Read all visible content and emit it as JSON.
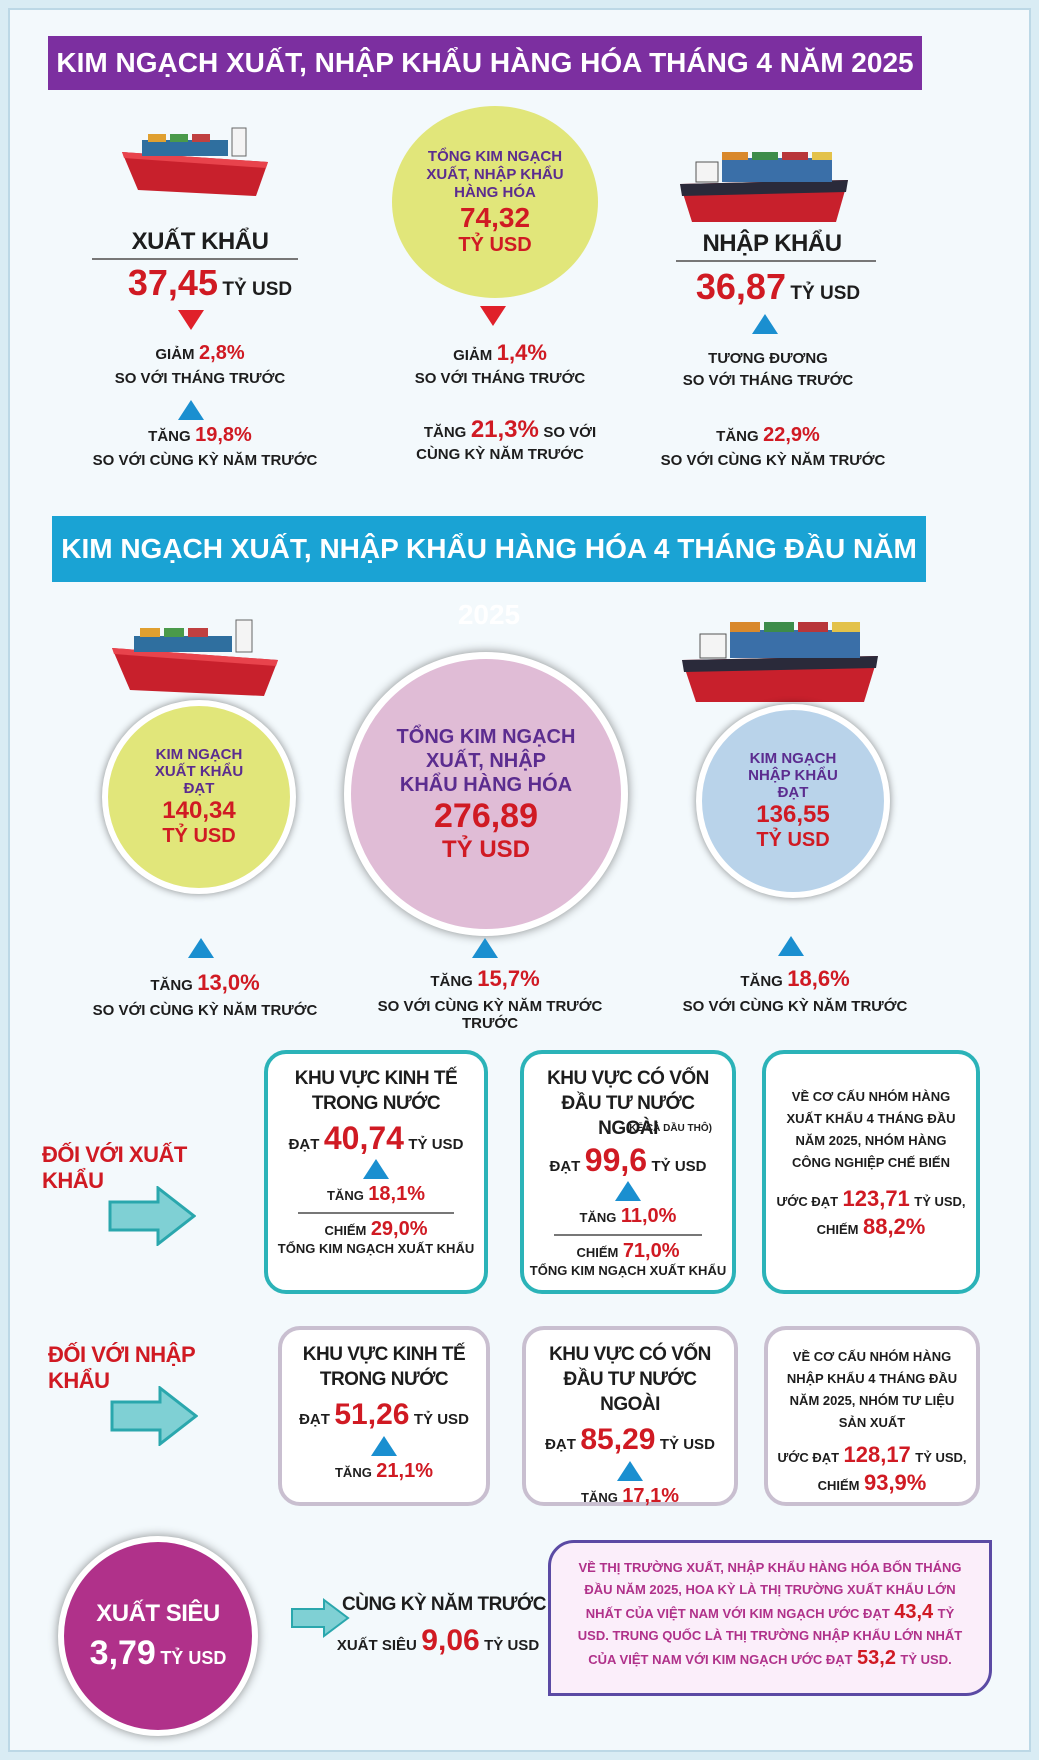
{
  "section1": {
    "title": "KIM NGẠCH XUẤT, NHẬP KHẨU HÀNG HÓA THÁNG 4 NĂM 2025",
    "export": {
      "label": "XUẤT KHẨU",
      "value": "37,45",
      "unit": "TỶ USD",
      "change1_prefix": "GIẢM",
      "change1_value": "2,8%",
      "change1_note": "SO VỚI THÁNG TRƯỚC",
      "change2_prefix": "TĂNG",
      "change2_value": "19,8%",
      "change2_note": "SO VỚI CÙNG KỲ NĂM TRƯỚC"
    },
    "total": {
      "label": "TỔNG KIM NGẠCH XUẤT, NHẬP KHẨU HÀNG HÓA",
      "value": "74,32",
      "unit": "TỶ USD",
      "change1_prefix": "GIẢM",
      "change1_value": "1,4%",
      "change1_note": "SO VỚI THÁNG TRƯỚC",
      "change2_prefix": "TĂNG",
      "change2_value": "21,3%",
      "change2_note_a": "SO VỚI",
      "change2_note_b": "CÙNG KỲ NĂM TRƯỚC"
    },
    "import": {
      "label": "NHẬP KHẨU",
      "value": "36,87",
      "unit": "TỶ USD",
      "change1_prefix": "TƯƠNG ĐƯƠNG",
      "change1_note": "SO VỚI THÁNG TRƯỚC",
      "change2_prefix": "TĂNG",
      "change2_value": "22,9%",
      "change2_note": "SO VỚI CÙNG KỲ NĂM TRƯỚC"
    }
  },
  "section2": {
    "title": "KIM NGẠCH XUẤT, NHẬP KHẨU HÀNG HÓA 4 THÁNG ĐẦU NĂM 2025",
    "export": {
      "label": "KIM NGẠCH XUẤT KHẨU ĐẠT",
      "value": "140,34",
      "unit": "TỶ USD",
      "change_prefix": "TĂNG",
      "change_value": "13,0%",
      "change_note": "SO VỚI CÙNG KỲ NĂM TRƯỚC"
    },
    "total": {
      "label": "TỔNG KIM NGẠCH XUẤT, NHẬP KHẨU HÀNG HÓA",
      "value": "276,89",
      "unit": "TỶ USD",
      "change_prefix": "TĂNG",
      "change_value": "15,7%",
      "change_note": "SO VỚI CÙNG KỲ NĂM TRƯỚC TRƯỚC"
    },
    "import": {
      "label": "KIM NGẠCH NHẬP KHẨU ĐẠT",
      "value": "136,55",
      "unit": "TỶ USD",
      "change_prefix": "TĂNG",
      "change_value": "18,6%",
      "change_note": "SO VỚI CÙNG KỲ NĂM TRƯỚC"
    }
  },
  "export_section": {
    "label": "ĐỐI VỚI XUẤT KHẨU",
    "domestic": {
      "title": "KHU VỰC KINH TẾ TRONG NƯỚC",
      "reach_prefix": "ĐẠT",
      "value": "40,74",
      "unit": "TỶ USD",
      "change_prefix": "TĂNG",
      "change_value": "18,1%",
      "share_prefix": "CHIẾM",
      "share_value": "29,0%",
      "share_note": "TỔNG KIM NGẠCH XUẤT KHẨU"
    },
    "fdi": {
      "title": "KHU VỰC CÓ VỐN ĐẦU TƯ NƯỚC NGOÀI",
      "title_note": "(KỂ CẢ DẦU THÔ)",
      "reach_prefix": "ĐẠT",
      "value": "99,6",
      "unit": "TỶ USD",
      "change_prefix": "TĂNG",
      "change_value": "11,0%",
      "share_prefix": "CHIẾM",
      "share_value": "71,0%",
      "share_note": "TỔNG KIM NGẠCH XUẤT KHẨU"
    },
    "structure": {
      "text": "VỀ CƠ CẤU NHÓM HÀNG XUẤT KHẨU 4 THÁNG ĐẦU NĂM 2025, NHÓM HÀNG CÔNG NGHIỆP CHẾ BIẾN",
      "est_prefix": "ƯỚC ĐẠT",
      "est_value": "123,71",
      "est_unit": "TỶ USD,",
      "share_prefix": "CHIẾM",
      "share_value": "88,2%"
    }
  },
  "import_section": {
    "label": "ĐỐI VỚI NHẬP KHẨU",
    "domestic": {
      "title": "KHU VỰC KINH TẾ TRONG NƯỚC",
      "reach_prefix": "ĐẠT",
      "value": "51,26",
      "unit": "TỶ USD",
      "change_prefix": "TĂNG",
      "change_value": "21,1%"
    },
    "fdi": {
      "title": "KHU VỰC CÓ VỐN ĐẦU TƯ NƯỚC NGOÀI",
      "reach_prefix": "ĐẠT",
      "value": "85,29",
      "unit": "TỶ USD",
      "change_prefix": "TĂNG",
      "change_value": "17,1%"
    },
    "structure": {
      "text": "VỀ CƠ CẤU NHÓM HÀNG NHẬP KHẨU 4 THÁNG ĐẦU NĂM 2025, NHÓM TƯ LIỆU SẢN XUẤT",
      "est_prefix": "ƯỚC ĐẠT",
      "est_value": "128,17",
      "est_unit": "TỶ USD,",
      "share_prefix": "CHIẾM",
      "share_value": "93,9%"
    }
  },
  "surplus": {
    "label": "XUẤT SIÊU",
    "value": "3,79",
    "unit": "TỶ USD",
    "prev_title": "CÙNG KỲ NĂM TRƯỚC",
    "prev_prefix": "XUẤT SIÊU",
    "prev_value": "9,06",
    "prev_unit": "TỶ USD"
  },
  "markets": {
    "text1": "VỀ THỊ TRƯỜNG XUẤT, NHẬP KHẨU HÀNG HÓA BỐN THÁNG ĐẦU NĂM 2025, HOA KỲ LÀ THỊ TRƯỜNG XUẤT KHẨU LỚN NHẤT CỦA VIỆT NAM VỚI KIM NGẠCH ƯỚC ĐẠT",
    "value1": "43,4",
    "text2": "TỶ USD. TRUNG QUỐC LÀ THỊ TRƯỜNG NHẬP KHẨU LỚN NHẤT CỦA VIỆT NAM VỚI KIM NGẠCH ƯỚC ĐẠT",
    "value2": "53,2",
    "text3": "TỶ USD."
  },
  "colors": {
    "banner1": "#7c2fa0",
    "banner2": "#1aa3d4",
    "red": "#d01a23",
    "purple_text": "#5b2c8f",
    "yellow_circle": "#e1e67a",
    "pink_circle": "#e0bcd6",
    "blue_circle": "#b9d3ea",
    "magenta_circle": "#b0318a",
    "teal_border": "#2bb3b8"
  },
  "icons": [
    "cargo-ship-icon",
    "container-ship-icon",
    "up-arrow-icon",
    "down-arrow-icon",
    "right-arrow-icon"
  ]
}
